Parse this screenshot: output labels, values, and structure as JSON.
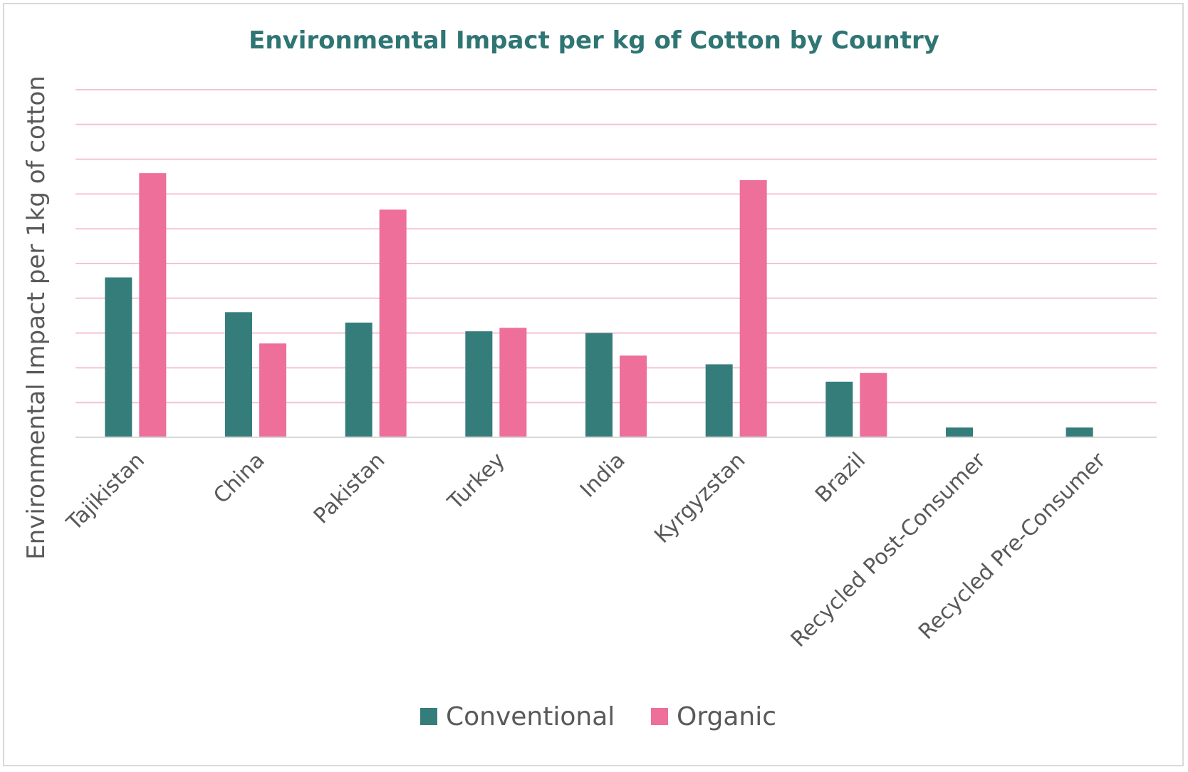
{
  "chart_data": {
    "type": "bar",
    "title": "Environmental Impact per kg of Cotton by Country",
    "xlabel": "",
    "ylabel": "Environmental Impact per 1kg of cotton",
    "categories": [
      "Tajikistan",
      "China",
      "Pakistan",
      "Turkey",
      "India",
      "Kyrgyzstan",
      "Brazil",
      "Recycled Post-Consumer",
      "Recycled Pre-Consumer"
    ],
    "series": [
      {
        "name": "Conventional",
        "color": "#357d7a",
        "values": [
          4.6,
          3.6,
          3.3,
          3.05,
          3.0,
          2.1,
          1.6,
          0.28,
          0.28
        ]
      },
      {
        "name": "Organic",
        "color": "#ee6f99",
        "values": [
          7.6,
          2.7,
          6.55,
          3.15,
          2.35,
          7.4,
          1.85,
          0,
          0
        ]
      }
    ],
    "ylim": [
      0,
      10
    ],
    "gridlines": 10,
    "grid": true,
    "gridColor": "#f5c3d5",
    "titleColor": "#2e7574",
    "legend_position": "bottom",
    "y_tick_labels_shown": false
  }
}
